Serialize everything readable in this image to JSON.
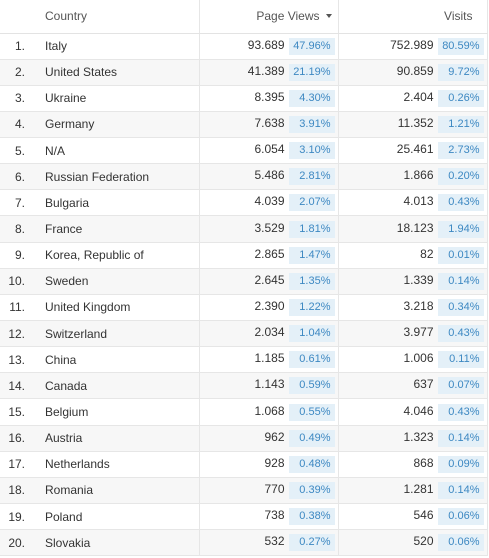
{
  "header": {
    "country": "Country",
    "page_views": "Page Views",
    "visits": "Visits",
    "sort_icon": "sort-descending-icon"
  },
  "colors": {
    "pct_background": "#e4f0f8",
    "pct_text": "#3d88c2",
    "row_alt": "#f7f7f7"
  },
  "rows": [
    {
      "idx": "1.",
      "country": "Italy",
      "pv": "93.689",
      "pv_pct": "47.96%",
      "visits": "752.989",
      "visits_pct": "80.59%"
    },
    {
      "idx": "2.",
      "country": "United States",
      "pv": "41.389",
      "pv_pct": "21.19%",
      "visits": "90.859",
      "visits_pct": "9.72%"
    },
    {
      "idx": "3.",
      "country": "Ukraine",
      "pv": "8.395",
      "pv_pct": "4.30%",
      "visits": "2.404",
      "visits_pct": "0.26%"
    },
    {
      "idx": "4.",
      "country": "Germany",
      "pv": "7.638",
      "pv_pct": "3.91%",
      "visits": "11.352",
      "visits_pct": "1.21%"
    },
    {
      "idx": "5.",
      "country": "N/A",
      "pv": "6.054",
      "pv_pct": "3.10%",
      "visits": "25.461",
      "visits_pct": "2.73%"
    },
    {
      "idx": "6.",
      "country": "Russian Federation",
      "pv": "5.486",
      "pv_pct": "2.81%",
      "visits": "1.866",
      "visits_pct": "0.20%"
    },
    {
      "idx": "7.",
      "country": "Bulgaria",
      "pv": "4.039",
      "pv_pct": "2.07%",
      "visits": "4.013",
      "visits_pct": "0.43%"
    },
    {
      "idx": "8.",
      "country": "France",
      "pv": "3.529",
      "pv_pct": "1.81%",
      "visits": "18.123",
      "visits_pct": "1.94%"
    },
    {
      "idx": "9.",
      "country": "Korea, Republic of",
      "pv": "2.865",
      "pv_pct": "1.47%",
      "visits": "82",
      "visits_pct": "0.01%"
    },
    {
      "idx": "10.",
      "country": "Sweden",
      "pv": "2.645",
      "pv_pct": "1.35%",
      "visits": "1.339",
      "visits_pct": "0.14%"
    },
    {
      "idx": "11.",
      "country": "United Kingdom",
      "pv": "2.390",
      "pv_pct": "1.22%",
      "visits": "3.218",
      "visits_pct": "0.34%"
    },
    {
      "idx": "12.",
      "country": "Switzerland",
      "pv": "2.034",
      "pv_pct": "1.04%",
      "visits": "3.977",
      "visits_pct": "0.43%"
    },
    {
      "idx": "13.",
      "country": "China",
      "pv": "1.185",
      "pv_pct": "0.61%",
      "visits": "1.006",
      "visits_pct": "0.11%"
    },
    {
      "idx": "14.",
      "country": "Canada",
      "pv": "1.143",
      "pv_pct": "0.59%",
      "visits": "637",
      "visits_pct": "0.07%"
    },
    {
      "idx": "15.",
      "country": "Belgium",
      "pv": "1.068",
      "pv_pct": "0.55%",
      "visits": "4.046",
      "visits_pct": "0.43%"
    },
    {
      "idx": "16.",
      "country": "Austria",
      "pv": "962",
      "pv_pct": "0.49%",
      "visits": "1.323",
      "visits_pct": "0.14%"
    },
    {
      "idx": "17.",
      "country": "Netherlands",
      "pv": "928",
      "pv_pct": "0.48%",
      "visits": "868",
      "visits_pct": "0.09%"
    },
    {
      "idx": "18.",
      "country": "Romania",
      "pv": "770",
      "pv_pct": "0.39%",
      "visits": "1.281",
      "visits_pct": "0.14%"
    },
    {
      "idx": "19.",
      "country": "Poland",
      "pv": "738",
      "pv_pct": "0.38%",
      "visits": "546",
      "visits_pct": "0.06%"
    },
    {
      "idx": "20.",
      "country": "Slovakia",
      "pv": "532",
      "pv_pct": "0.27%",
      "visits": "520",
      "visits_pct": "0.06%"
    }
  ]
}
